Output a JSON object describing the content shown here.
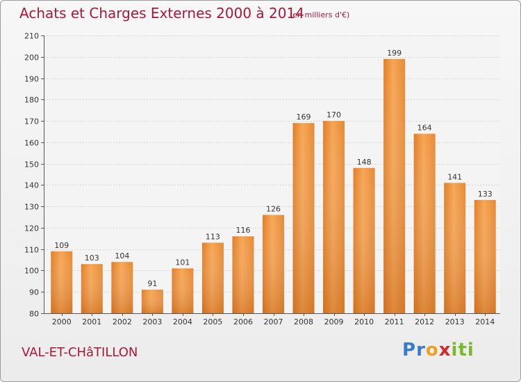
{
  "page": {
    "title": "Achats et Charges Externes 2000 à 2014",
    "subtitle": "(en milliers d'€)",
    "town": "VAL-ET-CHâTILLON",
    "logo": {
      "letters": [
        "P",
        "r",
        "o",
        "x",
        "i",
        "t",
        "i"
      ],
      "colors": [
        "#3a7cc9",
        "#3a7cc9",
        "#f0a020",
        "#d22a2a",
        "#7ab82e",
        "#7ab82e",
        "#7ab82e"
      ]
    }
  },
  "chart_data": {
    "type": "bar",
    "categories": [
      "2000",
      "2001",
      "2002",
      "2003",
      "2004",
      "2005",
      "2006",
      "2007",
      "2008",
      "2009",
      "2010",
      "2011",
      "2012",
      "2013",
      "2014"
    ],
    "values": [
      109,
      103,
      104,
      91,
      101,
      113,
      116,
      126,
      169,
      170,
      148,
      199,
      164,
      141,
      133
    ],
    "data_labels": [
      "109",
      "103",
      "104",
      "91",
      "101",
      "113",
      "116",
      "126",
      "169",
      "170",
      "148",
      "199",
      "164",
      "141",
      "133"
    ],
    "title": "Achats et Charges Externes 2000 à 2014",
    "ylim": [
      80,
      210
    ],
    "yticks": [
      80,
      90,
      100,
      110,
      120,
      130,
      140,
      150,
      160,
      170,
      180,
      190,
      200,
      210
    ],
    "ytick_labels": [
      "80",
      "90",
      "100",
      "110",
      "120",
      "130",
      "140",
      "150",
      "160",
      "170",
      "180",
      "190",
      "200",
      "210"
    ],
    "grid": true,
    "legend": "none",
    "bar_color_top": "#f7a555",
    "bar_color_bottom": "#d2701f"
  }
}
